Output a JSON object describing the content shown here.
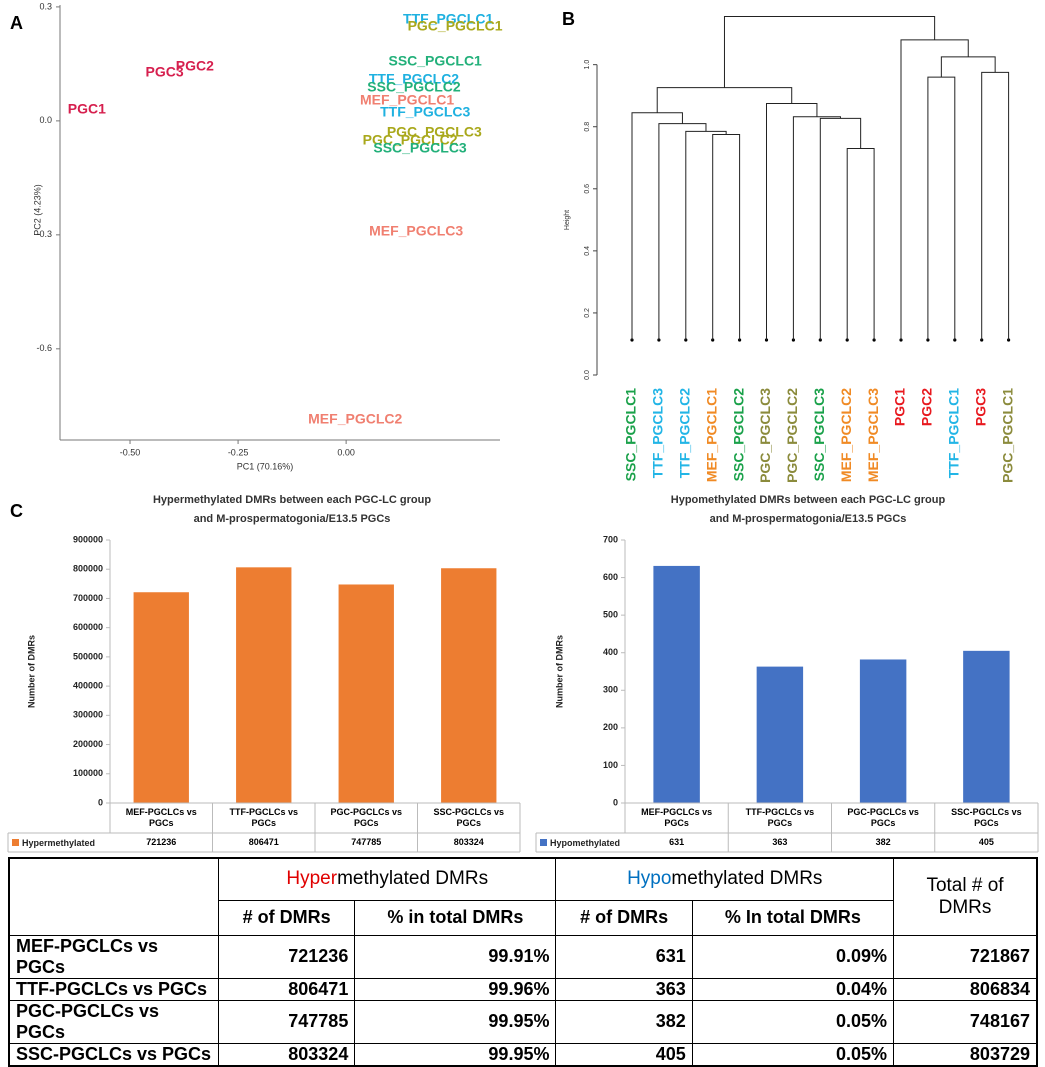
{
  "panel_labels": [
    "A",
    "B",
    "C"
  ],
  "chart_data": [
    {
      "type": "scatter",
      "labels": [
        "PGC1",
        "PGC3",
        "PGC2",
        "TTF_PGCLC1",
        "PGC_PGCLC1",
        "SSC_PGCLC1",
        "TTF_PGCLC2",
        "SSC_PGCLC2",
        "MEF_PGCLC1",
        "TTF_PGCLC3",
        "PGC_PGCLC3",
        "PGC_PGCLC2",
        "SSC_PGCLC3",
        "MEF_PGCLC3",
        "MEF_PGCLC2"
      ],
      "x": [
        -0.6,
        -0.42,
        -0.35,
        0.236,
        0.252,
        0.206,
        0.157,
        0.157,
        0.141,
        0.183,
        0.204,
        0.148,
        0.171,
        0.162,
        0.021
      ],
      "values": [
        0.029,
        0.126,
        0.142,
        0.266,
        0.247,
        0.155,
        0.108,
        0.087,
        0.053,
        0.021,
        -0.032,
        -0.053,
        -0.074,
        -0.292,
        -0.787
      ],
      "colors": [
        "#d61f4e",
        "#d61f4e",
        "#d61f4e",
        "#1fb1e0",
        "#a9a81b",
        "#22b07a",
        "#1fb1e0",
        "#22b07a",
        "#f07f70",
        "#1fb1e0",
        "#a9a81b",
        "#a9a81b",
        "#22b07a",
        "#f07f70",
        "#f07f70"
      ],
      "x_label": "PC1 (70.16%)",
      "y_label": "PC2 (4.23%)",
      "xlim": [
        -0.662,
        0.356
      ],
      "ylim": [
        -0.84,
        0.305
      ],
      "xticks": [
        {
          "value": -0.5,
          "label": "-0.50"
        },
        {
          "value": -0.25,
          "label": "-0.25"
        },
        {
          "value": 0,
          "label": "0.00"
        }
      ],
      "yticks": [
        0.3,
        {
          "value": 0,
          "label": "0.0"
        },
        -0.3,
        -0.6
      ]
    },
    {
      "type": "dendrogram",
      "leaves": [
        "SSC_PGCLC1",
        "TTF_PGCLC3",
        "TTF_PGCLC2",
        "MEF_PGCLC1",
        "SSC_PGCLC2",
        "PGC_PGCLC3",
        "PGC_PGCLC2",
        "SSC_PGCLC3",
        "MEF_PGCLC2",
        "MEF_PGCLC3",
        "PGC1",
        "PGC2",
        "TTF_PGCLC1",
        "PGC3",
        "PGC_PGCLC1"
      ],
      "leaf_colors": [
        "#1aa14a",
        "#22b5e6",
        "#22b5e6",
        "#f08a24",
        "#1aa14a",
        "#8b8b3c",
        "#8b8b3c",
        "#1aa14a",
        "#f08a24",
        "#f08a24",
        "#e8191f",
        "#e8191f",
        "#22b5e6",
        "#e8191f",
        "#8b8b3c"
      ],
      "merges": [
        [
          -9,
          -10
        ],
        [
          -4,
          -5
        ],
        [
          -3,
          2
        ],
        [
          -2,
          3
        ],
        [
          -8,
          1
        ],
        [
          -7,
          5
        ],
        [
          -1,
          4
        ],
        [
          -6,
          6
        ],
        [
          7,
          8
        ],
        [
          -12,
          -13
        ],
        [
          -14,
          -15
        ],
        [
          10,
          11
        ],
        [
          -11,
          12
        ],
        [
          9,
          13
        ]
      ],
      "heights": [
        0.73,
        0.775,
        0.785,
        0.81,
        0.827,
        0.832,
        0.845,
        0.875,
        0.926,
        0.96,
        0.975,
        1.025,
        1.08,
        1.155
      ],
      "y_label": "Height",
      "ylim": [
        0,
        1.16
      ],
      "yticks": [
        {
          "value": 0,
          "label": "0.0"
        },
        0.2,
        0.4,
        0.6,
        0.8,
        {
          "value": 1,
          "label": "1.0"
        }
      ]
    },
    {
      "type": "bar",
      "title": [
        "Hypermethylated DMRs between each PGC-LC group",
        "and M-prospermatogonia/E13.5 PGCs"
      ],
      "y_label": "Number of DMRs",
      "categories": [
        "MEF-PGCLCs vs PGCs",
        "TTF-PGCLCs vs PGCs",
        "PGC-PGCLCs vs PGCs",
        "SSC-PGCLCs vs PGCs"
      ],
      "series": [
        {
          "name": "Hypermethylated",
          "color": "#ed7d31",
          "values": [
            721236,
            806471,
            747785,
            803324
          ]
        }
      ],
      "ylim": [
        0,
        900000
      ],
      "yticks": [
        0,
        100000,
        200000,
        300000,
        400000,
        500000,
        600000,
        700000,
        800000,
        900000
      ]
    },
    {
      "type": "bar",
      "title": [
        "Hypomethylated DMRs between each PGC-LC group",
        "and M-prospermatogonia/E13.5 PGCs"
      ],
      "y_label": "Number of DMRs",
      "categories": [
        "MEF-PGCLCs vs PGCs",
        "TTF-PGCLCs vs PGCs",
        "PGC-PGCLCs vs PGCs",
        "SSC-PGCLCs vs PGCs"
      ],
      "series": [
        {
          "name": "Hypomethylated",
          "color": "#4472c4",
          "values": [
            631,
            363,
            382,
            405
          ]
        }
      ],
      "ylim": [
        0,
        700
      ],
      "yticks": [
        0,
        100,
        200,
        300,
        400,
        500,
        600,
        700
      ]
    }
  ],
  "table": {
    "header": {
      "hyper": [
        "Hyper",
        "methylated DMRs"
      ],
      "hypo": [
        "Hypo",
        "methylated DMRs"
      ],
      "total": "Total # of DMRs",
      "sub": [
        "# of DMRs",
        "% in total DMRs",
        "# of DMRs",
        "% In total DMRs"
      ]
    },
    "rows": [
      [
        "MEF-PGCLCs vs PGCs",
        "721236",
        "99.91%",
        "631",
        "0.09%",
        "721867"
      ],
      [
        "TTF-PGCLCs vs PGCs",
        "806471",
        "99.96%",
        "363",
        "0.04%",
        "806834"
      ],
      [
        "PGC-PGCLCs vs PGCs",
        "747785",
        "99.95%",
        "382",
        "0.05%",
        "748167"
      ],
      [
        "SSC-PGCLCs vs PGCs",
        "803324",
        "99.95%",
        "405",
        "0.05%",
        "803729"
      ]
    ]
  }
}
